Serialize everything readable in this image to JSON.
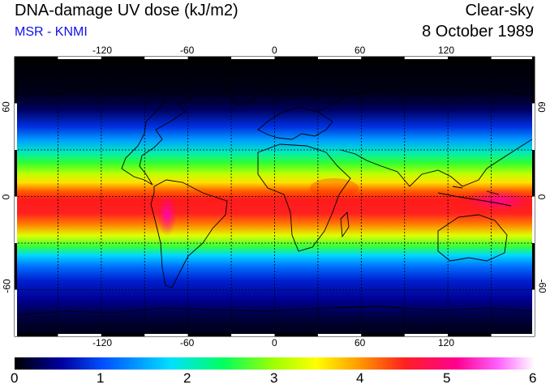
{
  "header": {
    "title": "DNA-damage UV dose (kJ/m2)",
    "source": "MSR - KNMI",
    "condition": "Clear-sky",
    "date": "8 October 1989"
  },
  "map": {
    "lon_ticks": [
      "-120",
      "-60",
      "0",
      "60",
      "120"
    ],
    "lat_ticks": [
      "60",
      "0",
      "-60"
    ],
    "gridlines": true,
    "projection": "equirectangular"
  },
  "colorbar": {
    "ticks": [
      "0",
      "1",
      "2",
      "3",
      "4",
      "5",
      "6"
    ],
    "range": [
      0,
      6
    ],
    "colors": [
      "#000000",
      "#0000a0",
      "#0050ff",
      "#00e0ff",
      "#00ff60",
      "#a0ff00",
      "#ffff00",
      "#ff9000",
      "#ff2020",
      "#ff0090",
      "#ff60ff",
      "#ffffff"
    ]
  }
}
